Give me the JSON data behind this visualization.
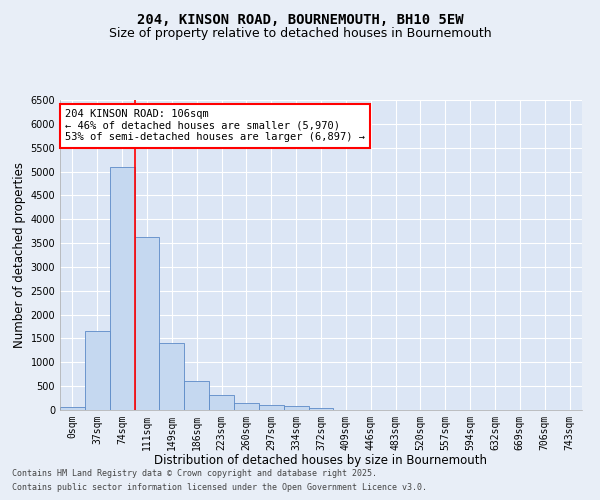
{
  "title_line1": "204, KINSON ROAD, BOURNEMOUTH, BH10 5EW",
  "title_line2": "Size of property relative to detached houses in Bournemouth",
  "xlabel": "Distribution of detached houses by size in Bournemouth",
  "ylabel": "Number of detached properties",
  "footer_line1": "Contains HM Land Registry data © Crown copyright and database right 2025.",
  "footer_line2": "Contains public sector information licensed under the Open Government Licence v3.0.",
  "bar_labels": [
    "0sqm",
    "37sqm",
    "74sqm",
    "111sqm",
    "149sqm",
    "186sqm",
    "223sqm",
    "260sqm",
    "297sqm",
    "334sqm",
    "372sqm",
    "409sqm",
    "446sqm",
    "483sqm",
    "520sqm",
    "557sqm",
    "594sqm",
    "632sqm",
    "669sqm",
    "706sqm",
    "743sqm"
  ],
  "bar_values": [
    70,
    1650,
    5100,
    3620,
    1410,
    610,
    310,
    150,
    110,
    75,
    50,
    0,
    0,
    0,
    0,
    0,
    0,
    0,
    0,
    0,
    0
  ],
  "bar_color": "#c5d8f0",
  "bar_edge_color": "#5b8ac7",
  "vline_color": "red",
  "vline_x": 2.5,
  "annotation_text": "204 KINSON ROAD: 106sqm\n← 46% of detached houses are smaller (5,970)\n53% of semi-detached houses are larger (6,897) →",
  "annotation_box_color": "white",
  "annotation_box_edge": "red",
  "ylim": [
    0,
    6500
  ],
  "yticks": [
    0,
    500,
    1000,
    1500,
    2000,
    2500,
    3000,
    3500,
    4000,
    4500,
    5000,
    5500,
    6000,
    6500
  ],
  "background_color": "#e8eef7",
  "plot_background": "#dce6f5",
  "grid_color": "white",
  "title_fontsize": 10,
  "subtitle_fontsize": 9,
  "axis_label_fontsize": 8.5,
  "tick_fontsize": 7,
  "annotation_fontsize": 7.5,
  "footer_fontsize": 6
}
